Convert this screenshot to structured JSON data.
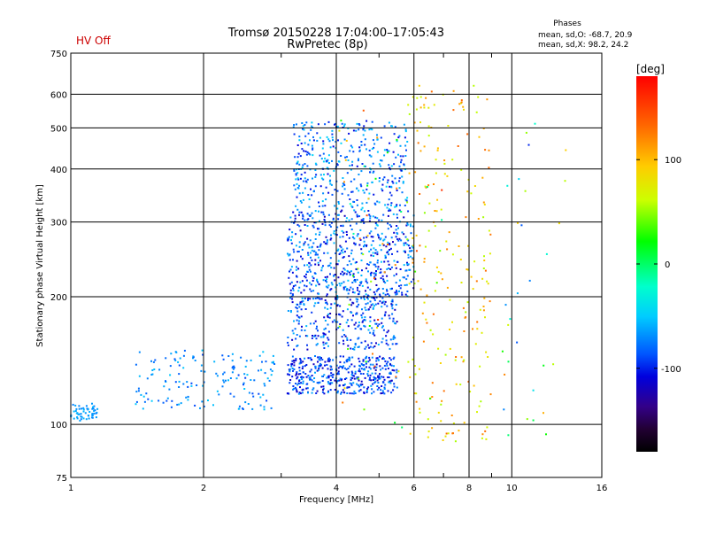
{
  "header": {
    "title": "Tromsø 20150228 17:04:00–17:05:43",
    "subtitle": "RwPretec (8p)",
    "hv_status": "HV Off",
    "hv_color": "#cc0000",
    "phases_title": "Phases",
    "phases_o": "mean, sd,O:  -68.7, 20.9",
    "phases_x": "mean, sd,X:   98.2, 24.2"
  },
  "colorbar": {
    "unit_label": "[deg]",
    "ticks": [
      "100",
      "0",
      "-100"
    ],
    "tick_values": [
      100,
      0,
      -100
    ],
    "range": [
      -180,
      180
    ],
    "palette": "rainbow"
  },
  "chart_data": {
    "type": "scatter",
    "xlabel": "Frequency [MHz]",
    "ylabel": "Stationary phase Virtual Height [km]",
    "xscale": "log",
    "yscale": "log",
    "xlim": [
      1,
      16
    ],
    "ylim": [
      75,
      750
    ],
    "xticks": [
      1,
      2,
      4,
      6,
      8,
      10,
      16
    ],
    "xtick_labels": [
      "1",
      "2",
      "4",
      "6",
      "8",
      "10",
      "16"
    ],
    "yticks": [
      75,
      100,
      200,
      300,
      400,
      500,
      600,
      750
    ],
    "ytick_labels": [
      "75",
      "100",
      "200",
      "300",
      "400",
      "500",
      "600",
      "750"
    ],
    "grid": true,
    "color_variable": "phase [deg]",
    "clusters": [
      {
        "n": 55,
        "x": [
          1.0,
          1.15
        ],
        "y": [
          102,
          112
        ],
        "phase": [
          -80,
          -60
        ]
      },
      {
        "n": 160,
        "x": [
          1.4,
          2.9
        ],
        "y": [
          108,
          150
        ],
        "phase": [
          -95,
          -55
        ]
      },
      {
        "n": 420,
        "x": [
          3.1,
          5.5
        ],
        "y": [
          118,
          145
        ],
        "phase": [
          -120,
          -65
        ]
      },
      {
        "n": 300,
        "x": [
          3.1,
          5.5
        ],
        "y": [
          150,
          200
        ],
        "phase": [
          -120,
          -60
        ]
      },
      {
        "n": 600,
        "x": [
          3.1,
          6.0
        ],
        "y": [
          200,
          320
        ],
        "phase": [
          -120,
          -55
        ]
      },
      {
        "n": 380,
        "x": [
          3.2,
          5.8
        ],
        "y": [
          320,
          520
        ],
        "phase": [
          -110,
          -50
        ]
      },
      {
        "n": 200,
        "x": [
          5.8,
          9.0
        ],
        "y": [
          90,
          640
        ],
        "phase": [
          40,
          130
        ]
      },
      {
        "n": 70,
        "x": [
          4.0,
          7.0
        ],
        "y": [
          95,
          600
        ],
        "phase": [
          -30,
          160
        ]
      },
      {
        "n": 30,
        "x": [
          9.5,
          13.5
        ],
        "y": [
          85,
          620
        ],
        "phase": [
          -110,
          120
        ]
      }
    ]
  }
}
